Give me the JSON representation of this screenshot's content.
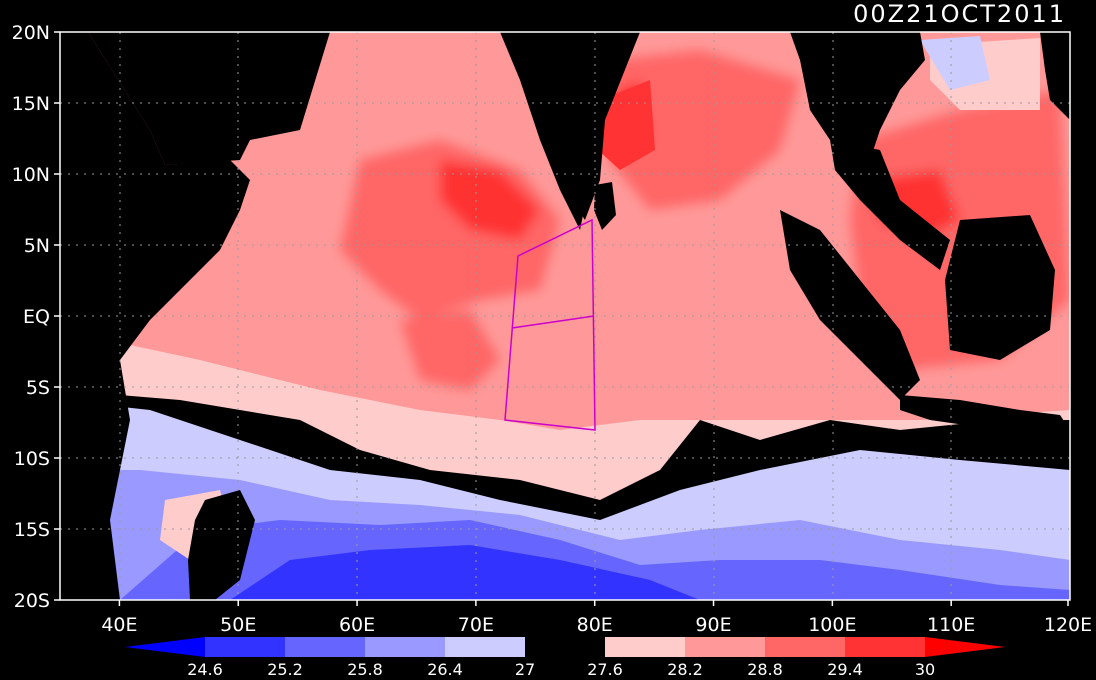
{
  "title": "00Z21OCT2011",
  "map": {
    "lon_range": [
      35,
      120
    ],
    "lat_range": [
      -20,
      20
    ],
    "lon_ticks": [
      {
        "lon": 40,
        "label": "40E"
      },
      {
        "lon": 50,
        "label": "50E"
      },
      {
        "lon": 60,
        "label": "60E"
      },
      {
        "lon": 70,
        "label": "70E"
      },
      {
        "lon": 80,
        "label": "80E"
      },
      {
        "lon": 90,
        "label": "90E"
      },
      {
        "lon": 100,
        "label": "100E"
      },
      {
        "lon": 110,
        "label": "110E"
      },
      {
        "lon": 120,
        "label": "120E"
      }
    ],
    "lat_ticks": [
      {
        "lat": 20,
        "label": "20N"
      },
      {
        "lat": 15,
        "label": "15N"
      },
      {
        "lat": 10,
        "label": "10N"
      },
      {
        "lat": 5,
        "label": "5N"
      },
      {
        "lat": 0,
        "label": "EQ"
      },
      {
        "lat": -5,
        "label": "5S"
      },
      {
        "lat": -10,
        "label": "10S"
      },
      {
        "lat": -15,
        "label": "15S"
      },
      {
        "lat": -20,
        "label": "20S"
      }
    ],
    "grid": "dotted",
    "land_color": "#000000",
    "box_color": "#cc00cc"
  },
  "colorbar": {
    "under_color": "#0000ff",
    "over_color": "#ff0000",
    "levels": [
      "24.6",
      "25.2",
      "25.8",
      "26.4",
      "27",
      "27.6",
      "28.2",
      "28.8",
      "29.4",
      "30"
    ],
    "colors": [
      "#3333ff",
      "#6666ff",
      "#9999ff",
      "#ccccff",
      "#000000",
      "#ffcccc",
      "#ff9999",
      "#ff6666",
      "#ff3333"
    ]
  }
}
